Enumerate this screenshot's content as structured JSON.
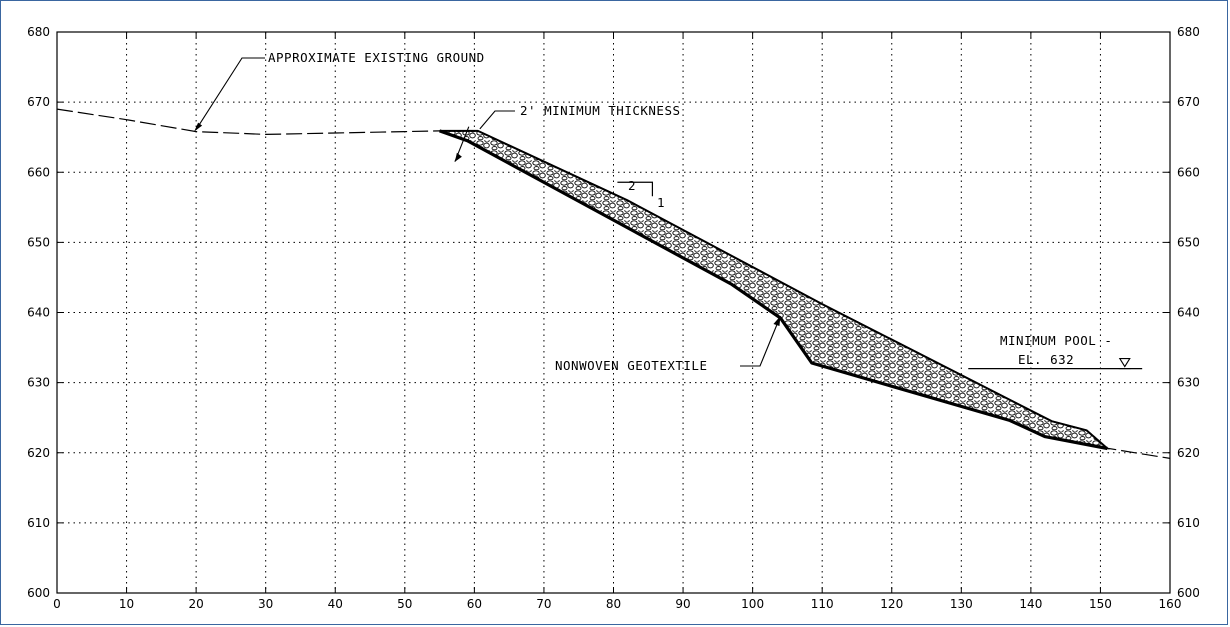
{
  "chart_data": {
    "type": "line",
    "xlim": [
      0,
      160
    ],
    "ylim": [
      600,
      680
    ],
    "x_ticks": [
      0,
      10,
      20,
      30,
      40,
      50,
      60,
      70,
      80,
      90,
      100,
      110,
      120,
      130,
      140,
      150,
      160
    ],
    "y_ticks": [
      600,
      610,
      620,
      630,
      640,
      650,
      660,
      670,
      680
    ],
    "grid": true,
    "existing_ground": [
      [
        0,
        669
      ],
      [
        10,
        667.5
      ],
      [
        20,
        665.8
      ],
      [
        30,
        665.4
      ],
      [
        40,
        665.6
      ],
      [
        50,
        665.8
      ],
      [
        55,
        665.9
      ]
    ],
    "downstream_ground": [
      [
        150,
        620.8
      ],
      [
        155,
        620
      ],
      [
        160,
        619.2
      ]
    ],
    "riprap_top": [
      [
        55,
        665.9
      ],
      [
        60.5,
        665.9
      ],
      [
        82,
        656
      ],
      [
        110,
        641.2
      ],
      [
        143,
        624.5
      ],
      [
        148,
        623.2
      ],
      [
        151,
        620.6
      ]
    ],
    "riprap_bottom": [
      [
        55,
        665.9
      ],
      [
        59,
        664.5
      ],
      [
        97,
        644
      ],
      [
        104,
        639.2
      ],
      [
        108.5,
        632.8
      ],
      [
        137,
        624.6
      ],
      [
        142,
        622.3
      ],
      [
        151,
        620.6
      ]
    ],
    "slope_marker": {
      "run": "2",
      "rise": "1",
      "x": 82,
      "y": 658
    },
    "pool": {
      "x1": 131,
      "x2": 156,
      "y": 632
    },
    "annotations": [
      {
        "id": "existing-ground",
        "text": "APPROXIMATE EXISTING GROUND"
      },
      {
        "id": "min-thickness",
        "text": "2' MINIMUM THICKNESS"
      },
      {
        "id": "geotextile",
        "text": "NONWOVEN GEOTEXTILE"
      },
      {
        "id": "pool-1",
        "text": "MINIMUM POOL -"
      },
      {
        "id": "pool-2",
        "text": "EL. 632"
      }
    ]
  }
}
